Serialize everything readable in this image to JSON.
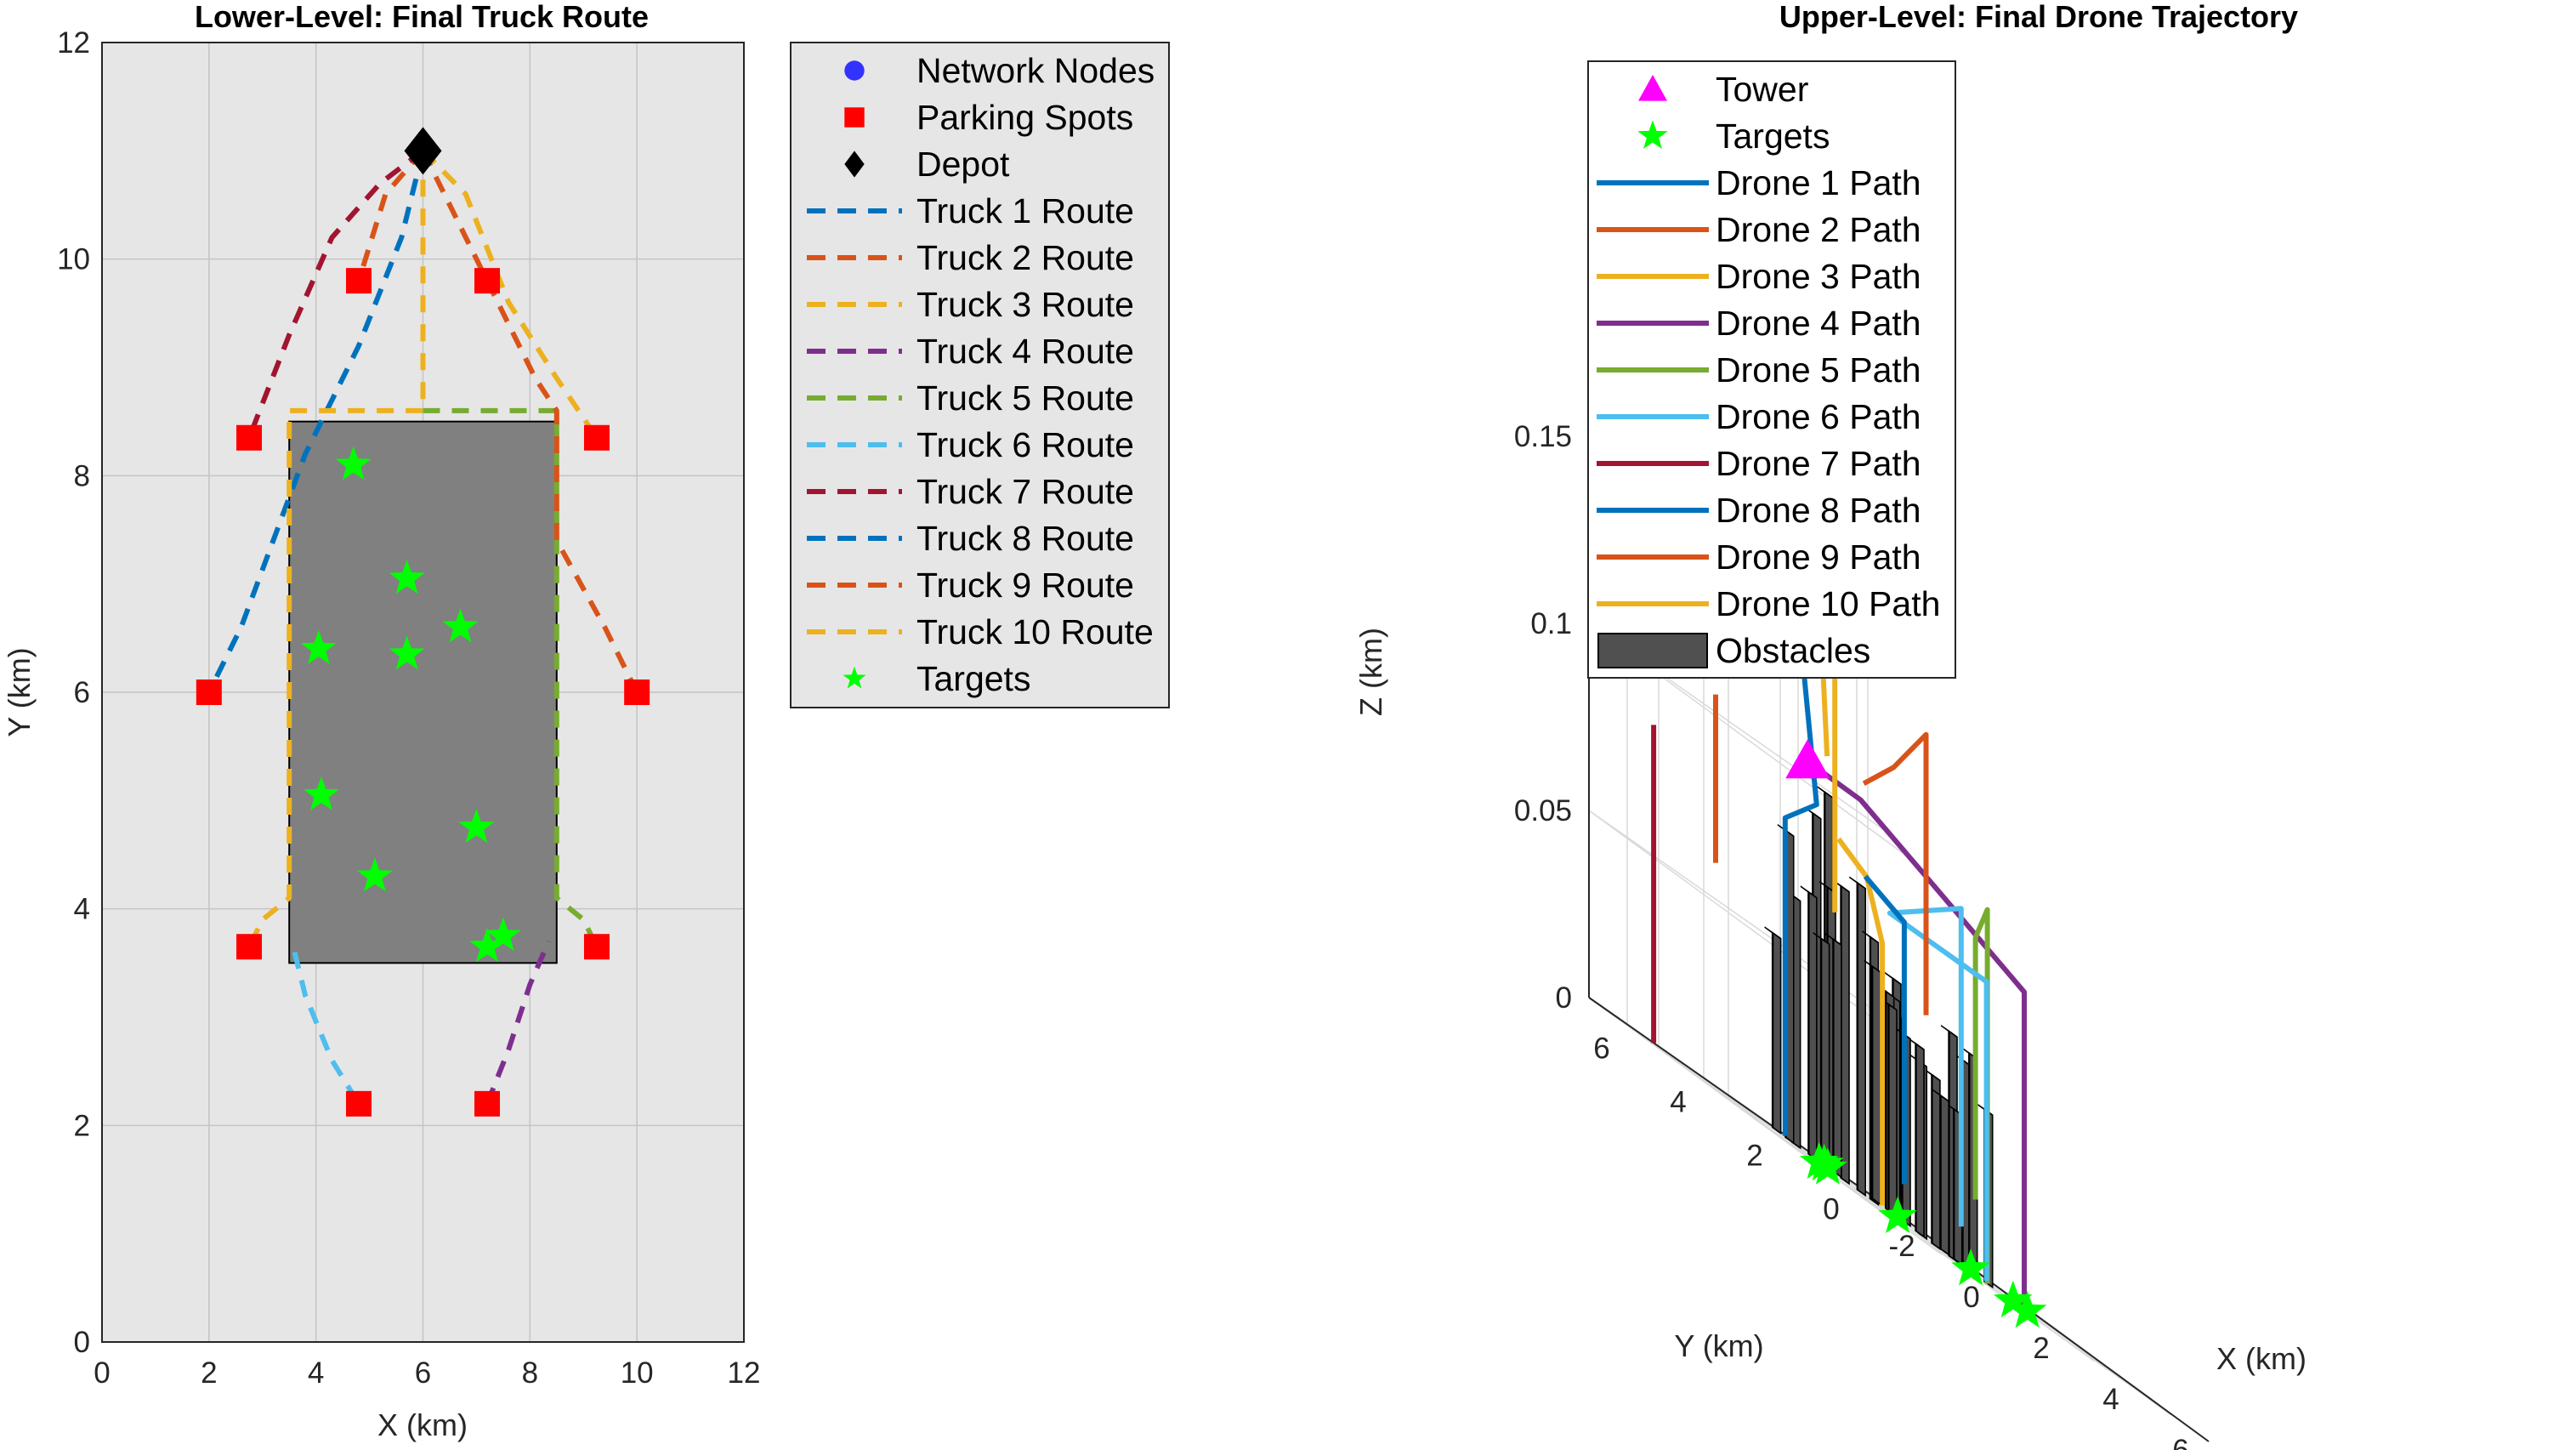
{
  "chart_data": [
    {
      "type": "line",
      "title": "Lower-Level: Final Truck Route",
      "xlabel": "X (km)",
      "ylabel": "Y (km)",
      "xlim": [
        0,
        12
      ],
      "ylim": [
        0,
        12
      ],
      "xticks": [
        "0",
        "2",
        "4",
        "6",
        "8",
        "10",
        "12"
      ],
      "yticks": [
        "0",
        "2",
        "4",
        "6",
        "8",
        "10",
        "12"
      ],
      "grid": true,
      "legend_position": "outside-right",
      "legend": [
        {
          "label": "Network Nodes",
          "color": "#3333ff",
          "marker": "circle"
        },
        {
          "label": "Parking Spots",
          "color": "#ff0000",
          "marker": "square"
        },
        {
          "label": "Depot",
          "color": "#000000",
          "marker": "diamond"
        },
        {
          "label": "Truck 1 Route",
          "color": "#0072BD",
          "marker": "dash"
        },
        {
          "label": "Truck 2 Route",
          "color": "#D95319",
          "marker": "dash"
        },
        {
          "label": "Truck 3 Route",
          "color": "#EDB120",
          "marker": "dash"
        },
        {
          "label": "Truck 4 Route",
          "color": "#7E2F8E",
          "marker": "dash"
        },
        {
          "label": "Truck 5 Route",
          "color": "#77AC30",
          "marker": "dash"
        },
        {
          "label": "Truck 6 Route",
          "color": "#4DBEEE",
          "marker": "dash"
        },
        {
          "label": "Truck 7 Route",
          "color": "#A2142F",
          "marker": "dash"
        },
        {
          "label": "Truck 8 Route",
          "color": "#0072BD",
          "marker": "dash"
        },
        {
          "label": "Truck 9 Route",
          "color": "#D95319",
          "marker": "dash"
        },
        {
          "label": "Truck 10 Route",
          "color": "#EDB120",
          "marker": "dash"
        },
        {
          "label": "Targets",
          "color": "#00ff00",
          "marker": "star"
        }
      ],
      "obstacle": {
        "x": [
          3.5,
          8.5
        ],
        "y": [
          3.5,
          8.5
        ],
        "color": "#808080"
      },
      "depot": {
        "x": 6,
        "y": 11
      },
      "parking_spots": [
        {
          "x": 4.8,
          "y": 9.8
        },
        {
          "x": 7.2,
          "y": 9.8
        },
        {
          "x": 2.75,
          "y": 8.35
        },
        {
          "x": 9.25,
          "y": 8.35
        },
        {
          "x": 2.0,
          "y": 6.0
        },
        {
          "x": 10.0,
          "y": 6.0
        },
        {
          "x": 2.75,
          "y": 3.65
        },
        {
          "x": 9.25,
          "y": 3.65
        },
        {
          "x": 4.8,
          "y": 2.2
        },
        {
          "x": 7.2,
          "y": 2.2
        }
      ],
      "targets": [
        {
          "x": 4.7,
          "y": 8.1
        },
        {
          "x": 5.7,
          "y": 7.05
        },
        {
          "x": 6.7,
          "y": 6.6
        },
        {
          "x": 4.05,
          "y": 6.4
        },
        {
          "x": 5.7,
          "y": 6.35
        },
        {
          "x": 4.1,
          "y": 5.05
        },
        {
          "x": 7.0,
          "y": 4.75
        },
        {
          "x": 5.1,
          "y": 4.3
        },
        {
          "x": 7.5,
          "y": 3.75
        },
        {
          "x": 7.2,
          "y": 3.65
        }
      ],
      "routes": [
        {
          "name": "Truck 1 Route",
          "color": "#0072BD",
          "points": [
            [
              6,
              11
            ],
            [
              5.6,
              10.2
            ],
            [
              4.8,
              9.2
            ],
            [
              3.8,
              8.2
            ],
            [
              2.6,
              6.6
            ],
            [
              2,
              6
            ]
          ]
        },
        {
          "name": "Truck 2 Route",
          "color": "#D95319",
          "points": [
            [
              6,
              11
            ],
            [
              5.3,
              10.6
            ],
            [
              4.8,
              9.8
            ]
          ]
        },
        {
          "name": "Truck 3 Route",
          "color": "#EDB120",
          "points": [
            [
              6,
              11
            ],
            [
              6,
              8.6
            ],
            [
              3.5,
              8.6
            ],
            [
              3.5,
              4.1
            ],
            [
              3,
              3.9
            ],
            [
              2.75,
              3.65
            ]
          ]
        },
        {
          "name": "Truck 4 Route",
          "color": "#7E2F8E",
          "points": [
            [
              7.2,
              2.2
            ],
            [
              7.6,
              2.7
            ],
            [
              8.0,
              3.3
            ],
            [
              8.35,
              3.7
            ]
          ]
        },
        {
          "name": "Truck 5 Route",
          "color": "#77AC30",
          "points": [
            [
              6,
              8.6
            ],
            [
              8.5,
              8.6
            ],
            [
              8.5,
              4.1
            ],
            [
              9.0,
              3.9
            ],
            [
              9.25,
              3.65
            ]
          ]
        },
        {
          "name": "Truck 6 Route",
          "color": "#4DBEEE",
          "points": [
            [
              3.6,
              3.6
            ],
            [
              3.8,
              3.2
            ],
            [
              4.3,
              2.6
            ],
            [
              4.8,
              2.2
            ]
          ]
        },
        {
          "name": "Truck 7 Route",
          "color": "#A2142F",
          "points": [
            [
              6,
              11
            ],
            [
              5.2,
              10.7
            ],
            [
              4.3,
              10.2
            ],
            [
              3.5,
              9.3
            ],
            [
              2.75,
              8.35
            ]
          ]
        },
        {
          "name": "Truck 8 Route",
          "color": "#0072BD",
          "points": [
            [
              6,
              11
            ],
            [
              6,
              10.9
            ]
          ]
        },
        {
          "name": "Truck 9 Route",
          "color": "#D95319",
          "points": [
            [
              6,
              11
            ],
            [
              6.5,
              10.5
            ],
            [
              7.2,
              9.8
            ],
            [
              8.1,
              8.9
            ],
            [
              8.5,
              8.6
            ],
            [
              8.5,
              7.4
            ],
            [
              9.4,
              6.6
            ],
            [
              10,
              6
            ]
          ]
        },
        {
          "name": "Truck 10 Route",
          "color": "#EDB120",
          "points": [
            [
              6,
              11
            ],
            [
              6.8,
              10.6
            ],
            [
              7.6,
              9.6
            ],
            [
              8.5,
              8.9
            ],
            [
              9.25,
              8.35
            ]
          ]
        }
      ]
    },
    {
      "type": "line",
      "title": "Upper-Level: Final Drone Trajectory",
      "xlabel": "X (km)",
      "ylabel": "Y (km)",
      "zlabel": "Z (km)",
      "xticks": [
        "-2",
        "0",
        "2",
        "4",
        "6"
      ],
      "yticks": [
        "0",
        "2",
        "4",
        "6"
      ],
      "zticks": [
        "0",
        "0.05",
        "0.1",
        "0.15"
      ],
      "xlim": [
        -2,
        7
      ],
      "ylim": [
        -1,
        7
      ],
      "zlim": [
        0,
        0.19
      ],
      "grid": true,
      "legend_position": "top-left",
      "legend": [
        {
          "label": "Tower",
          "color": "#ff00ff",
          "marker": "triangle"
        },
        {
          "label": "Targets",
          "color": "#00ff00",
          "marker": "star"
        },
        {
          "label": "Drone 1 Path",
          "color": "#0072BD",
          "marker": "line"
        },
        {
          "label": "Drone 2 Path",
          "color": "#D95319",
          "marker": "line"
        },
        {
          "label": "Drone 3 Path",
          "color": "#EDB120",
          "marker": "line"
        },
        {
          "label": "Drone 4 Path",
          "color": "#7E2F8E",
          "marker": "line"
        },
        {
          "label": "Drone 5 Path",
          "color": "#77AC30",
          "marker": "line"
        },
        {
          "label": "Drone 6 Path",
          "color": "#4DBEEE",
          "marker": "line"
        },
        {
          "label": "Drone 7 Path",
          "color": "#A2142F",
          "marker": "line"
        },
        {
          "label": "Drone 8 Path",
          "color": "#0072BD",
          "marker": "line"
        },
        {
          "label": "Drone 9 Path",
          "color": "#D95319",
          "marker": "line"
        },
        {
          "label": "Drone 10 Path",
          "color": "#EDB120",
          "marker": "line"
        },
        {
          "label": "Obstacles",
          "color": "#505050",
          "marker": "box"
        }
      ],
      "tower": {
        "x": 1.2,
        "y": 4.2,
        "z": 0.105
      },
      "targets": [
        {
          "x": -0.3,
          "y": 2.4,
          "z": 0
        },
        {
          "x": 0.6,
          "y": 1.3,
          "z": 0
        },
        {
          "x": 1.6,
          "y": 0.3,
          "z": 0
        },
        {
          "x": 3.8,
          "y": 1.2,
          "z": 0
        },
        {
          "x": 4.1,
          "y": 1.1,
          "z": 0
        },
        {
          "x": 0.9,
          "y": 3.4,
          "z": 0
        },
        {
          "x": 1.2,
          "y": 3.9,
          "z": 0
        }
      ],
      "obstacles": [
        {
          "x": -0.9,
          "y": 3.2,
          "h": 0.052
        },
        {
          "x": -0.2,
          "y": 3.5,
          "h": 0.082
        },
        {
          "x": 0.1,
          "y": 3.6,
          "h": 0.066
        },
        {
          "x": 0.35,
          "y": 3.4,
          "h": 0.07
        },
        {
          "x": 0.6,
          "y": 3.3,
          "h": 0.06
        },
        {
          "x": 0.8,
          "y": 3.7,
          "h": 0.092
        },
        {
          "x": 1.0,
          "y": 3.5,
          "h": 0.075
        },
        {
          "x": 1.25,
          "y": 3.8,
          "h": 0.1
        },
        {
          "x": 1.5,
          "y": 3.6,
          "h": 0.078
        },
        {
          "x": 1.75,
          "y": 3.4,
          "h": 0.082
        },
        {
          "x": 0.2,
          "y": 1.6,
          "h": 0.062
        },
        {
          "x": 0.45,
          "y": 1.4,
          "h": 0.055
        },
        {
          "x": 0.7,
          "y": 1.7,
          "h": 0.058
        },
        {
          "x": 0.95,
          "y": 1.5,
          "h": 0.05
        },
        {
          "x": 1.2,
          "y": 2.0,
          "h": 0.058
        },
        {
          "x": 1.45,
          "y": 2.2,
          "h": 0.063
        },
        {
          "x": 1.7,
          "y": 2.4,
          "h": 0.054
        },
        {
          "x": 2.0,
          "y": 2.1,
          "h": 0.05
        },
        {
          "x": 2.3,
          "y": 2.3,
          "h": 0.046
        },
        {
          "x": 2.6,
          "y": 2.0,
          "h": 0.041
        },
        {
          "x": 2.9,
          "y": 2.5,
          "h": 0.045
        },
        {
          "x": 3.2,
          "y": 2.2,
          "h": 0.04
        },
        {
          "x": 3.5,
          "y": 2.6,
          "h": 0.06
        },
        {
          "x": 3.75,
          "y": 2.3,
          "h": 0.058
        },
        {
          "x": 4.0,
          "y": 2.7,
          "h": 0.055
        },
        {
          "x": 4.3,
          "y": 2.4,
          "h": 0.046
        },
        {
          "x": 1.9,
          "y": 3.2,
          "h": 0.07
        },
        {
          "x": 2.2,
          "y": 3.0,
          "h": 0.052
        },
        {
          "x": 2.5,
          "y": 3.3,
          "h": 0.048
        },
        {
          "x": 0.4,
          "y": 2.8,
          "h": 0.062
        }
      ],
      "drone_paths": [
        {
          "name": "Drone 1 Path",
          "color": "#0072BD",
          "points": [
            [
              -1.2,
              2.6,
              0
            ],
            [
              -1.2,
              2.6,
              0.085
            ],
            [
              0.8,
              3.6,
              0.095
            ],
            [
              1.4,
              4.6,
              0.14
            ],
            [
              1.8,
              5.0,
              0.155
            ]
          ]
        },
        {
          "name": "Drone 2 Path",
          "color": "#D95319",
          "points": [
            [
              -1.0,
              4.6,
              0.06
            ],
            [
              -1.0,
              4.6,
              0.105
            ]
          ]
        },
        {
          "name": "Drone 3 Path",
          "color": "#EDB120",
          "points": [
            [
              0.05,
              1.2,
              0
            ],
            [
              0.05,
              1.2,
              0.07
            ],
            [
              0.7,
              2.2,
              0.085
            ],
            [
              1.1,
              3.3,
              0.09
            ]
          ]
        },
        {
          "name": "Drone 4 Path",
          "color": "#7E2F8E",
          "points": [
            [
              1.2,
              4.2,
              0.105
            ],
            [
              2.5,
              4.0,
              0.105
            ],
            [
              4.0,
              3.2,
              0.095
            ],
            [
              5.0,
              2.0,
              0.085
            ],
            [
              5.0,
              2.0,
              0
            ]
          ]
        },
        {
          "name": "Drone 5 Path",
          "color": "#77AC30",
          "points": [
            [
              3.6,
              2.0,
              0.02
            ],
            [
              3.6,
              2.0,
              0.09
            ],
            [
              4.6,
              2.6,
              0.1
            ],
            [
              4.6,
              2.6,
              0
            ]
          ]
        },
        {
          "name": "Drone 6 Path",
          "color": "#4DBEEE",
          "points": [
            [
              2.6,
              0.8,
              0
            ],
            [
              2.6,
              0.8,
              0.08
            ],
            [
              1.8,
              2.6,
              0.08
            ],
            [
              3.3,
              2.1,
              0.095
            ],
            [
              3.3,
              2.1,
              0.01
            ]
          ]
        },
        {
          "name": "Drone 7 Path",
          "color": "#A2142F",
          "points": [
            [
              -1.9,
              5.4,
              0
            ],
            [
              -1.9,
              5.4,
              0.085
            ]
          ]
        },
        {
          "name": "Drone 8 Path",
          "color": "#0072BD",
          "points": [
            [
              0.9,
              1.4,
              0.01
            ],
            [
              0.9,
              1.4,
              0.08
            ],
            [
              1.1,
              2.6,
              0.085
            ]
          ]
        },
        {
          "name": "Drone 9 Path",
          "color": "#D95319",
          "points": [
            [
              3.5,
              3.2,
              0.06
            ],
            [
              3.5,
              3.2,
              0.135
            ],
            [
              2.9,
              3.5,
              0.12
            ],
            [
              2.7,
              4.1,
              0.11
            ]
          ]
        },
        {
          "name": "Drone 10 Path",
          "color": "#EDB120",
          "points": [
            [
              1.1,
              3.6,
              0.11
            ],
            [
              1.6,
              4.2,
              0.14
            ],
            [
              2.2,
              4.4,
              0.15
            ],
            [
              2.2,
              4.4,
              0.07
            ]
          ]
        }
      ]
    }
  ]
}
